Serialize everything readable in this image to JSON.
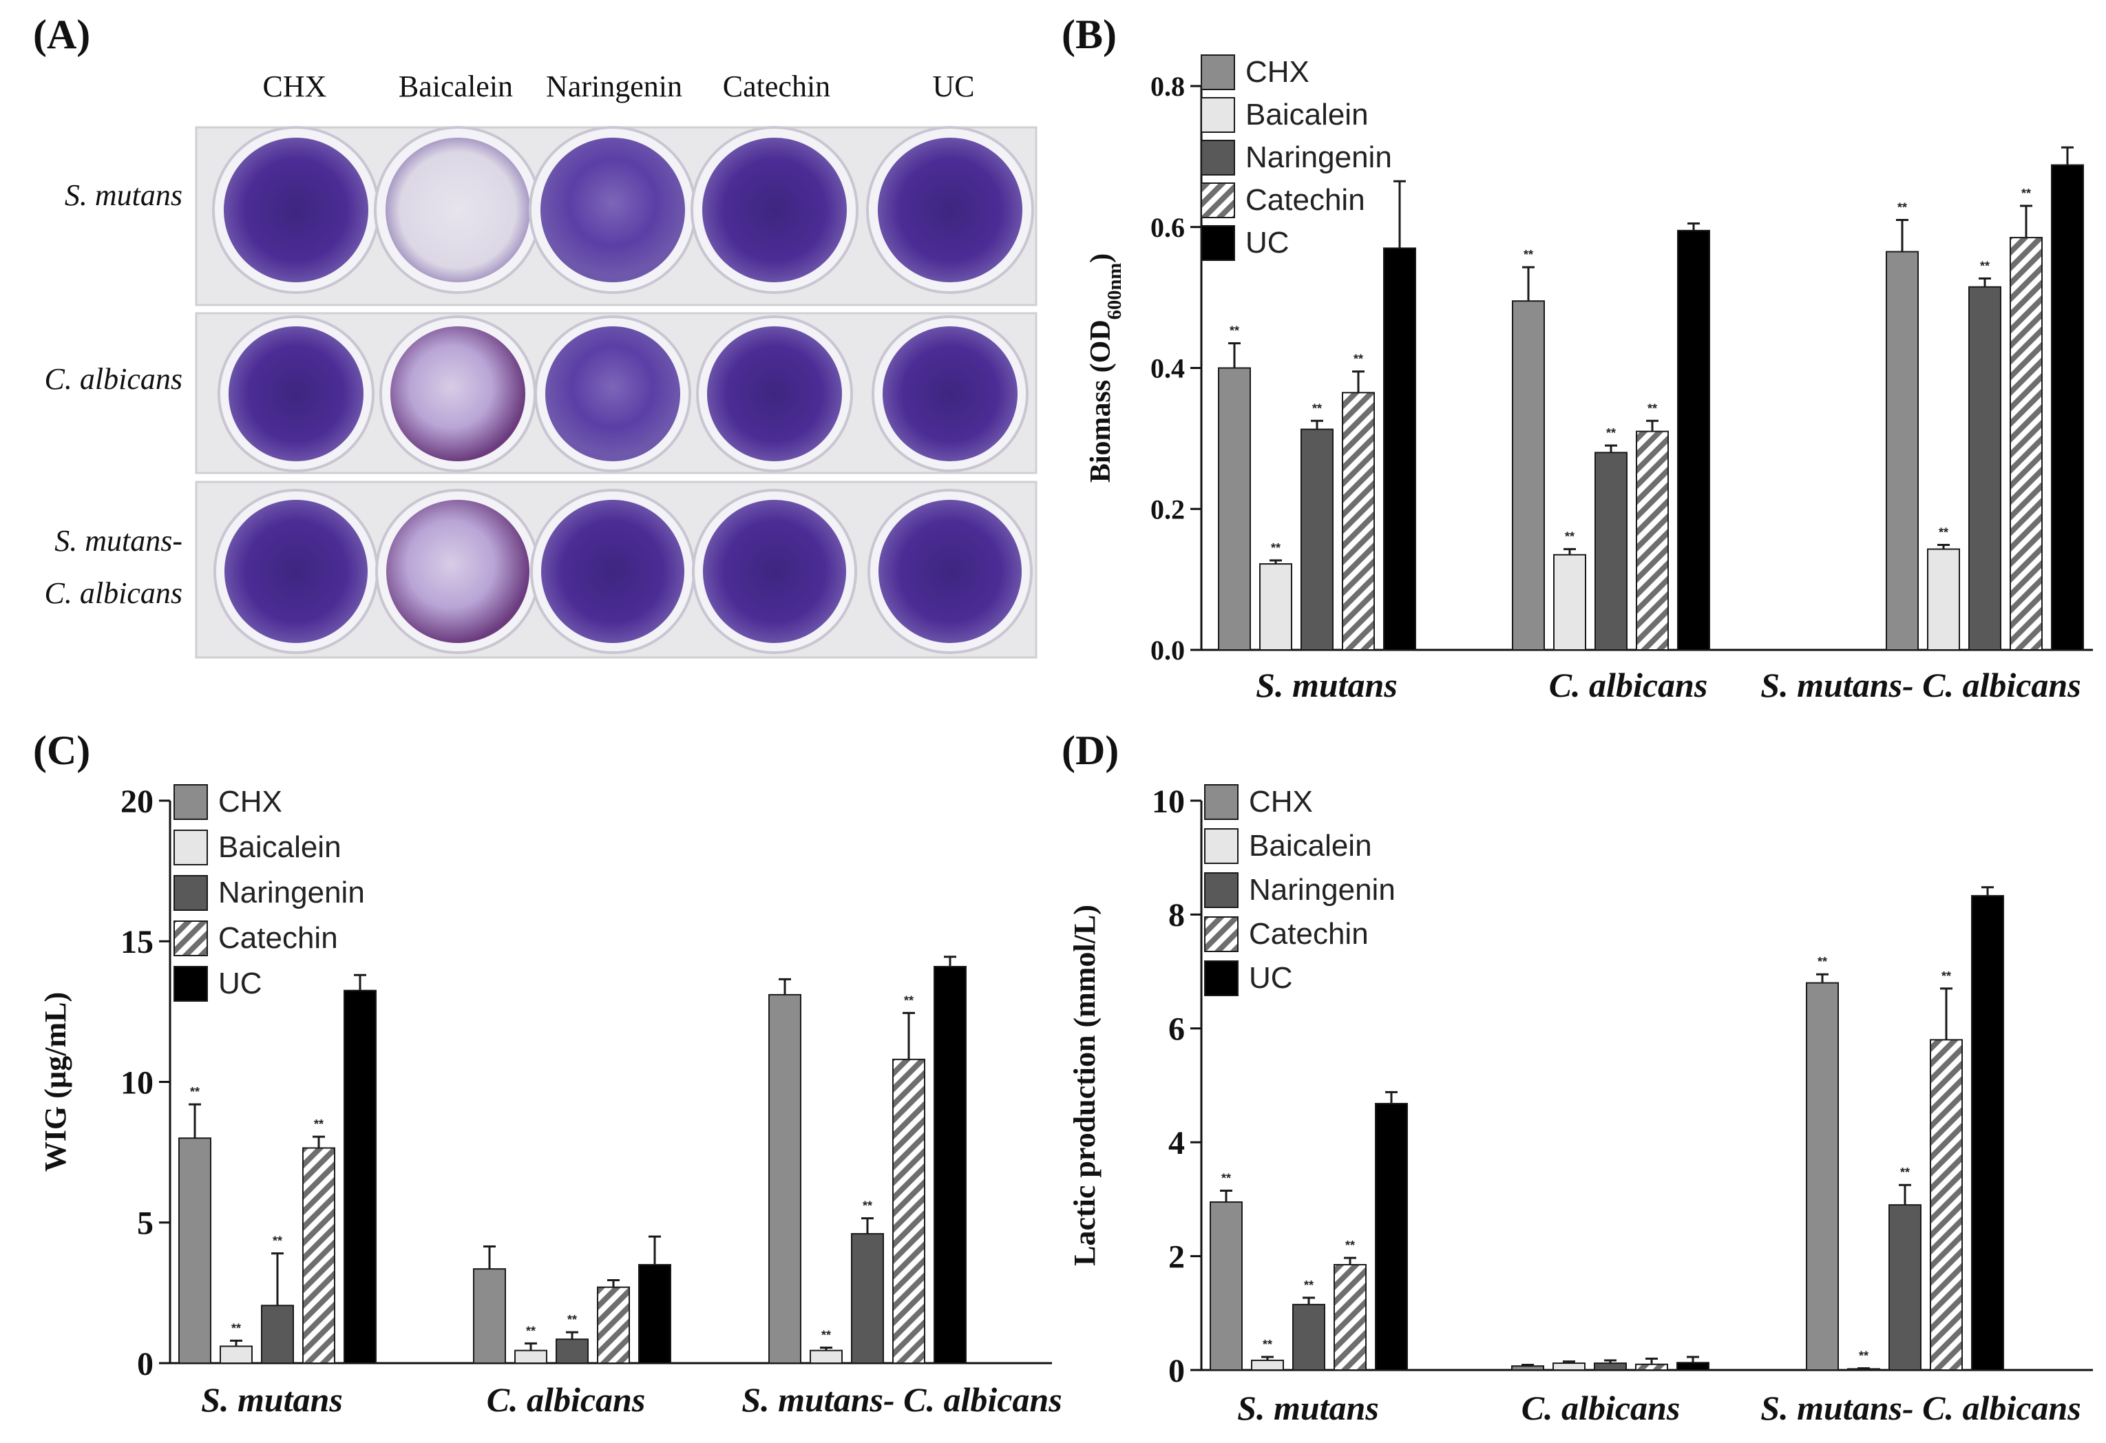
{
  "panel_a": {
    "letter": "(A)",
    "columns": [
      "CHX",
      "Baicalein",
      "Naringenin",
      "Catechin",
      "UC"
    ],
    "rows": [
      "S. mutans",
      "C. albicans",
      "S. mutans-",
      "C. albicans"
    ]
  },
  "colors": {
    "CHX": "#8c8c8c",
    "Baicalein": "#e6e6e6",
    "Naringenin": "#595959",
    "Catechin": "hatch",
    "UC": "#000000",
    "well_dark": "#4a2a8c",
    "well_mid": "#6a45b0",
    "well_light": "#d9d4e2"
  },
  "chart_data": [
    {
      "type": "bar",
      "panel": "(B)",
      "ylabel_main": "Biomass (OD",
      "ylabel_sub": "600nm",
      "ylabel_close": ")",
      "ylim": [
        0,
        0.8
      ],
      "yticks": [
        "0.0",
        "0.2",
        "0.4",
        "0.6",
        "0.8"
      ],
      "categories": [
        "S. mutans",
        "C. albicans",
        "S. mutans- C. albicans"
      ],
      "series": [
        {
          "name": "CHX",
          "values": [
            0.4,
            0.495,
            0.565
          ],
          "errors": [
            0.035,
            0.048,
            0.045
          ],
          "sig": [
            "**",
            "**",
            "**"
          ]
        },
        {
          "name": "Baicalein",
          "values": [
            0.122,
            0.135,
            0.143
          ],
          "errors": [
            0.005,
            0.008,
            0.006
          ],
          "sig": [
            "**",
            "**",
            "**"
          ]
        },
        {
          "name": "Naringenin",
          "values": [
            0.313,
            0.28,
            0.515
          ],
          "errors": [
            0.012,
            0.01,
            0.012
          ],
          "sig": [
            "**",
            "**",
            "**"
          ]
        },
        {
          "name": "Catechin",
          "values": [
            0.365,
            0.31,
            0.585
          ],
          "errors": [
            0.03,
            0.015,
            0.045
          ],
          "sig": [
            "**",
            "**",
            "**"
          ]
        },
        {
          "name": "UC",
          "values": [
            0.57,
            0.595,
            0.688
          ],
          "errors": [
            0.095,
            0.01,
            0.025
          ],
          "sig": [
            "",
            "",
            ""
          ]
        }
      ]
    },
    {
      "type": "bar",
      "panel": "(C)",
      "ylabel_main": "WIG (µg/mL)",
      "ylim": [
        0,
        20
      ],
      "yticks": [
        "0",
        "5",
        "10",
        "15",
        "20"
      ],
      "categories": [
        "S. mutans",
        "C. albicans",
        "S. mutans- C. albicans"
      ],
      "series": [
        {
          "name": "CHX",
          "values": [
            8.0,
            3.35,
            13.1
          ],
          "errors": [
            1.2,
            0.8,
            0.55
          ],
          "sig": [
            "**",
            "",
            ""
          ]
        },
        {
          "name": "Baicalein",
          "values": [
            0.6,
            0.45,
            0.45
          ],
          "errors": [
            0.2,
            0.25,
            0.1
          ],
          "sig": [
            "**",
            "**",
            "**"
          ]
        },
        {
          "name": "Naringenin",
          "values": [
            2.05,
            0.85,
            4.6
          ],
          "errors": [
            1.85,
            0.25,
            0.55
          ],
          "sig": [
            "**",
            "**",
            "**"
          ]
        },
        {
          "name": "Catechin",
          "values": [
            7.65,
            2.7,
            10.8
          ],
          "errors": [
            0.4,
            0.25,
            1.65
          ],
          "sig": [
            "**",
            "",
            "**"
          ]
        },
        {
          "name": "UC",
          "values": [
            13.25,
            3.5,
            14.1
          ],
          "errors": [
            0.55,
            1.0,
            0.35
          ],
          "sig": [
            "",
            "",
            ""
          ]
        }
      ]
    },
    {
      "type": "bar",
      "panel": "(D)",
      "ylabel_main": "Lactic production (mmol/L)",
      "ylim": [
        0,
        10
      ],
      "yticks": [
        "0",
        "2",
        "4",
        "6",
        "8",
        "10"
      ],
      "categories": [
        "S. mutans",
        "C. albicans",
        "S. mutans- C. albicans"
      ],
      "series": [
        {
          "name": "CHX",
          "values": [
            2.95,
            0.07,
            6.8
          ],
          "errors": [
            0.2,
            0.02,
            0.15
          ],
          "sig": [
            "**",
            "",
            "**"
          ]
        },
        {
          "name": "Baicalein",
          "values": [
            0.17,
            0.12,
            0.02
          ],
          "errors": [
            0.06,
            0.03,
            0.01
          ],
          "sig": [
            "**",
            "",
            "**"
          ]
        },
        {
          "name": "Naringenin",
          "values": [
            1.15,
            0.12,
            2.9
          ],
          "errors": [
            0.12,
            0.05,
            0.35
          ],
          "sig": [
            "**",
            "",
            "**"
          ]
        },
        {
          "name": "Catechin",
          "values": [
            1.85,
            0.1,
            5.8
          ],
          "errors": [
            0.12,
            0.1,
            0.9
          ],
          "sig": [
            "**",
            "",
            "**"
          ]
        },
        {
          "name": "UC",
          "values": [
            4.68,
            0.13,
            8.33
          ],
          "errors": [
            0.2,
            0.1,
            0.15
          ],
          "sig": [
            "",
            "",
            ""
          ]
        }
      ]
    }
  ]
}
